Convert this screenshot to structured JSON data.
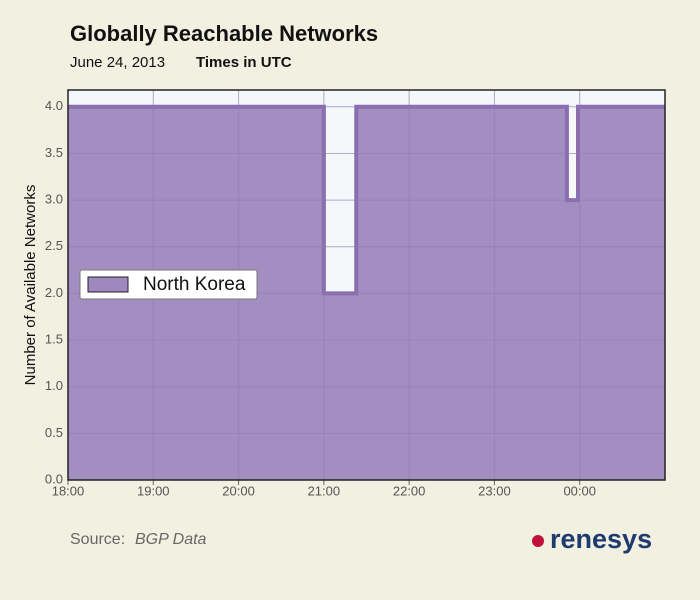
{
  "chart_data": {
    "type": "area",
    "title": "Globally Reachable Networks",
    "subtitle": "June 24, 2013",
    "timezone_note": "Times in UTC",
    "y_label": "Number of Available Networks",
    "source_label": "Source:",
    "source": "BGP Data",
    "brand": "renesys",
    "series": [
      {
        "name": "North Korea",
        "color": "#9e88bf",
        "line_color": "#8a6db0",
        "x": [
          18,
          21,
          21,
          21.38,
          21.38,
          23.85,
          23.85,
          23.98,
          23.98,
          25
        ],
        "values": [
          4,
          4,
          2,
          2,
          4,
          4,
          3,
          3,
          4,
          4
        ]
      }
    ],
    "xlim": [
      18,
      25
    ],
    "xticks": [
      {
        "value": 18,
        "label": "18:00"
      },
      {
        "value": 19,
        "label": "19:00"
      },
      {
        "value": 20,
        "label": "20:00"
      },
      {
        "value": 21,
        "label": "21:00"
      },
      {
        "value": 22,
        "label": "22:00"
      },
      {
        "value": 23,
        "label": "23:00"
      },
      {
        "value": 24,
        "label": "00:00"
      }
    ],
    "ylim": [
      0,
      4.18
    ],
    "yticks": [
      {
        "value": 0,
        "label": "0.0"
      },
      {
        "value": 0.5,
        "label": "0.5"
      },
      {
        "value": 1,
        "label": "1.0"
      },
      {
        "value": 1.5,
        "label": "1.5"
      },
      {
        "value": 2,
        "label": "2.0"
      },
      {
        "value": 2.5,
        "label": "2.5"
      },
      {
        "value": 3,
        "label": "3.0"
      },
      {
        "value": 3.5,
        "label": "3.5"
      },
      {
        "value": 4,
        "label": "4.0"
      }
    ],
    "grid": true,
    "legend_position": "left"
  }
}
